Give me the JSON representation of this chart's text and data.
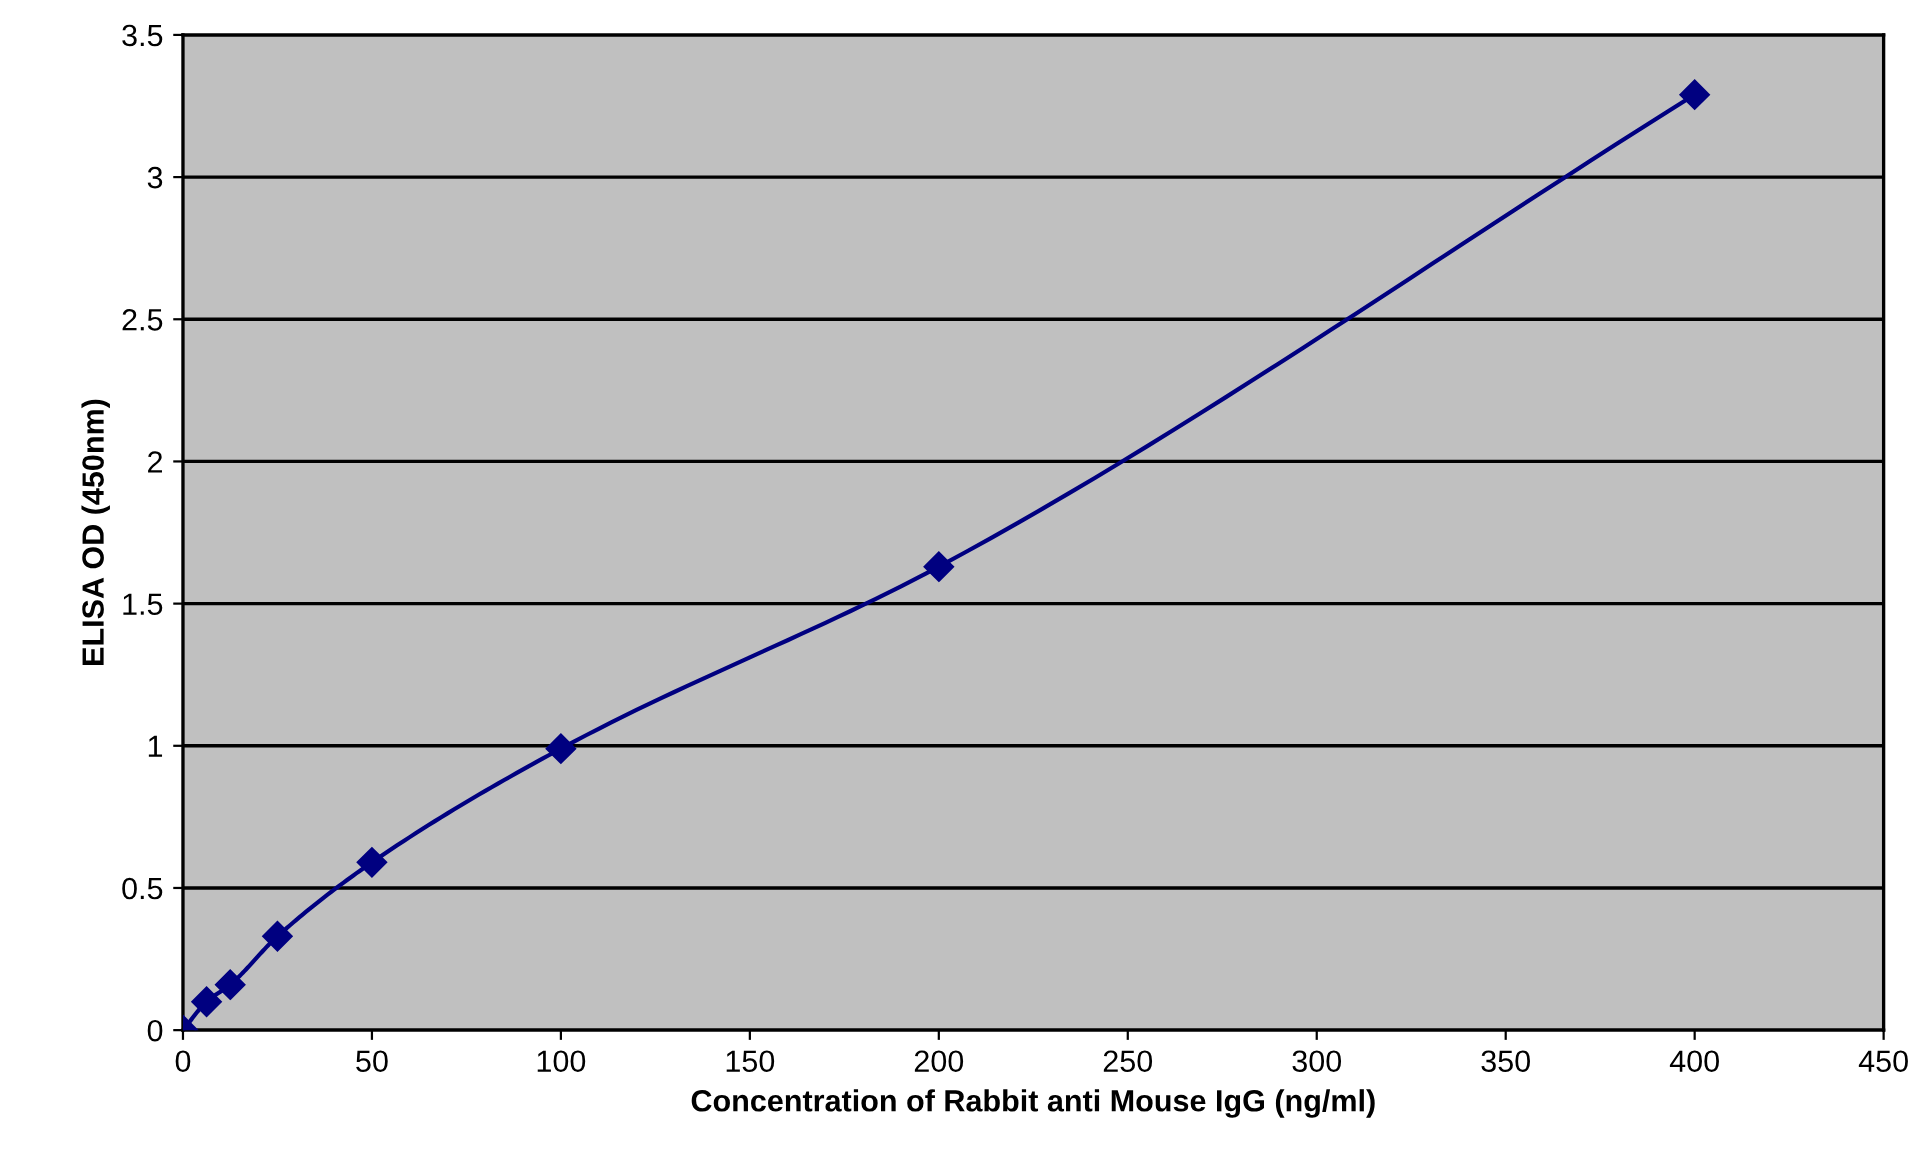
{
  "chart_data": {
    "type": "line",
    "xlabel": "Concentration of Rabbit anti Mouse IgG (ng/ml)",
    "ylabel": "ELISA OD (450nm)",
    "x": [
      0,
      6.25,
      12.5,
      25,
      50,
      100,
      200,
      400
    ],
    "series": [
      {
        "color": "#000080",
        "values": [
          0,
          0.1,
          0.16,
          0.33,
          0.59,
          0.99,
          1.63,
          3.29
        ]
      }
    ],
    "xlim": [
      0,
      450
    ],
    "xticks": [
      0,
      50,
      100,
      150,
      200,
      250,
      300,
      350,
      400,
      450
    ],
    "ylim": [
      0,
      3.5
    ],
    "yticks": [
      0,
      0.5,
      1,
      1.5,
      2,
      2.5,
      3,
      3.5
    ],
    "grid": "y",
    "marker": "diamond",
    "line_style": "solid"
  }
}
